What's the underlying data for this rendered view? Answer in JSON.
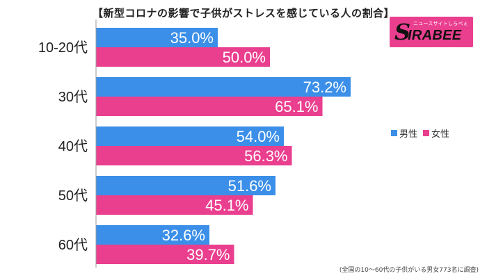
{
  "title": "【新型コロナの影響で子供がストレスを感じている人の割合】",
  "logo": {
    "tagline": "ニュースサイトしらべぇ",
    "mark": "S",
    "word": "IRABEE"
  },
  "legend": {
    "male": "男性",
    "female": "女性"
  },
  "footnote": "(全国の10～60代の子供がいる男女773名に調査)",
  "colors": {
    "male": "#3b8fe8",
    "female": "#ea3f8f",
    "axis": "#9a9a9a"
  },
  "chart_data": {
    "type": "bar",
    "orientation": "horizontal",
    "categories": [
      "10-20代",
      "30代",
      "40代",
      "50代",
      "60代"
    ],
    "series": [
      {
        "name": "男性",
        "values": [
          35.0,
          73.2,
          54.0,
          51.6,
          32.6
        ],
        "labels": [
          "35.0%",
          "73.2%",
          "54.0%",
          "51.6%",
          "32.6%"
        ]
      },
      {
        "name": "女性",
        "values": [
          50.0,
          65.1,
          56.3,
          45.1,
          39.7
        ],
        "labels": [
          "50.0%",
          "65.1%",
          "56.3%",
          "45.1%",
          "39.7%"
        ]
      }
    ],
    "xlim": [
      0,
      100
    ],
    "grid": false,
    "legend_position": "right"
  }
}
